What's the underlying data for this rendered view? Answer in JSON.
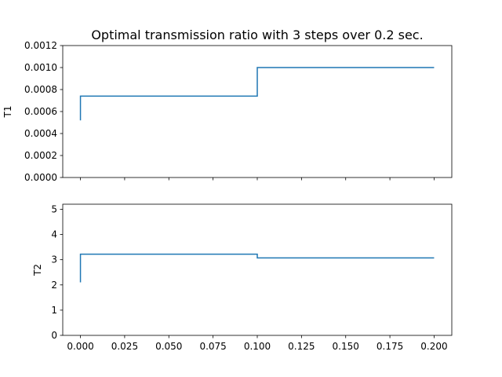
{
  "title": "Optimal transmission ratio with 3 steps over 0.2 sec.",
  "line_color": "#1f77b4",
  "chart_data": [
    {
      "type": "line",
      "step": true,
      "ylabel": "T1",
      "xlim": [
        -0.01,
        0.21
      ],
      "ylim": [
        0,
        0.0012
      ],
      "yticks": [
        0,
        0.0002,
        0.0004,
        0.0006,
        0.0008,
        0.001,
        0.0012
      ],
      "ytick_labels": [
        "0.0000",
        "0.0002",
        "0.0004",
        "0.0006",
        "0.0008",
        "0.0010",
        "0.0012"
      ],
      "xticks": [
        0,
        0.025,
        0.05,
        0.075,
        0.1,
        0.125,
        0.15,
        0.175,
        0.2
      ],
      "xtick_labels": [],
      "x": [
        0,
        0,
        0.1,
        0.1,
        0.2
      ],
      "y": [
        0.00052,
        0.00074,
        0.00074,
        0.001,
        0.001
      ]
    },
    {
      "type": "line",
      "step": true,
      "ylabel": "T2",
      "xlim": [
        -0.01,
        0.21
      ],
      "ylim": [
        0,
        5.2
      ],
      "yticks": [
        0,
        1,
        2,
        3,
        4,
        5
      ],
      "ytick_labels": [
        "0",
        "1",
        "2",
        "3",
        "4",
        "5"
      ],
      "xticks": [
        0,
        0.025,
        0.05,
        0.075,
        0.1,
        0.125,
        0.15,
        0.175,
        0.2
      ],
      "xtick_labels": [
        "0.000",
        "0.025",
        "0.050",
        "0.075",
        "0.100",
        "0.125",
        "0.150",
        "0.175",
        "0.200"
      ],
      "x": [
        0,
        0,
        0.1,
        0.1,
        0.2
      ],
      "y": [
        2.1,
        3.22,
        3.22,
        3.07,
        3.07
      ]
    }
  ]
}
